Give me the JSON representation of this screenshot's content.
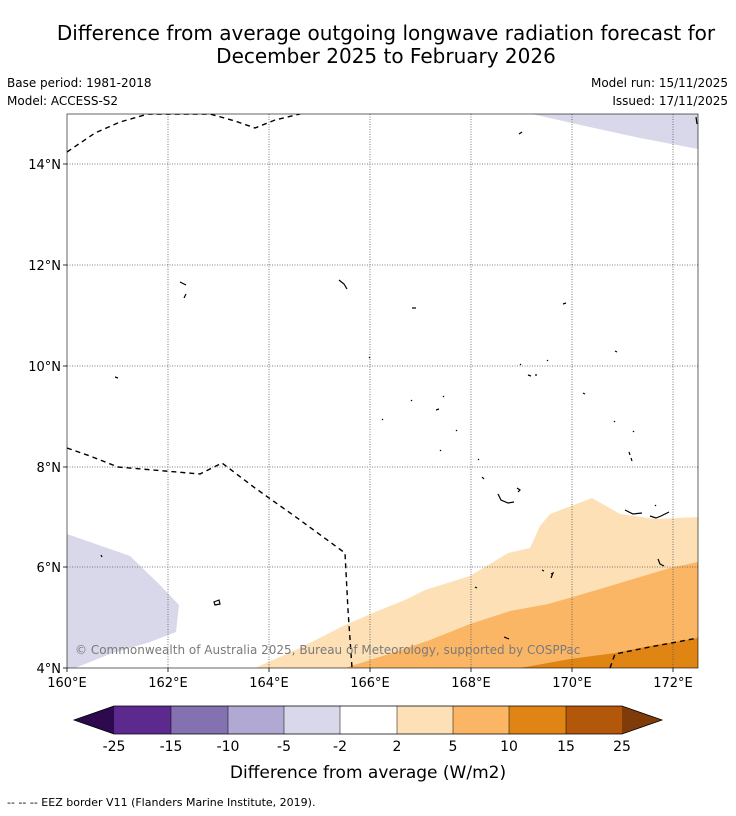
{
  "title_line1": "Difference from average outgoing longwave radiation forecast for",
  "title_line2": "December 2025 to February 2026",
  "base_period": "Base period: 1981-2018",
  "model": "Model: ACCESS-S2",
  "model_run": "Model run: 15/11/2025",
  "issued": "Issued: 17/11/2025",
  "map": {
    "lon_ticks": [
      "160°E",
      "162°E",
      "164°E",
      "166°E",
      "168°E",
      "170°E",
      "172°E"
    ],
    "lat_ticks": [
      "14°N",
      "12°N",
      "10°N",
      "8°N",
      "6°N",
      "4°N"
    ],
    "copyright": "© Commonwealth of Australia 2025, Bureau of Meteorology, supported by COSPPac"
  },
  "colorbar": {
    "title": "Difference from average (W/m2)",
    "tick_labels": [
      "-25",
      "-15",
      "-10",
      "-5",
      "-2",
      "2",
      "5",
      "10",
      "15",
      "25"
    ],
    "colors": {
      "below_min": "#2d0a4e",
      "c1": "#5c2a8e",
      "c2": "#8472b0",
      "c3": "#b1a8d3",
      "c4": "#d8d8ea",
      "c5": "#ffffff",
      "c6": "#fde0b6",
      "c7": "#fab665",
      "c8": "#e08514",
      "c9": "#b3580a",
      "above_max": "#7f3b08"
    }
  },
  "footnote": "--  --  -- EEZ border V11 (Flanders Marine Institute, 2019)."
}
